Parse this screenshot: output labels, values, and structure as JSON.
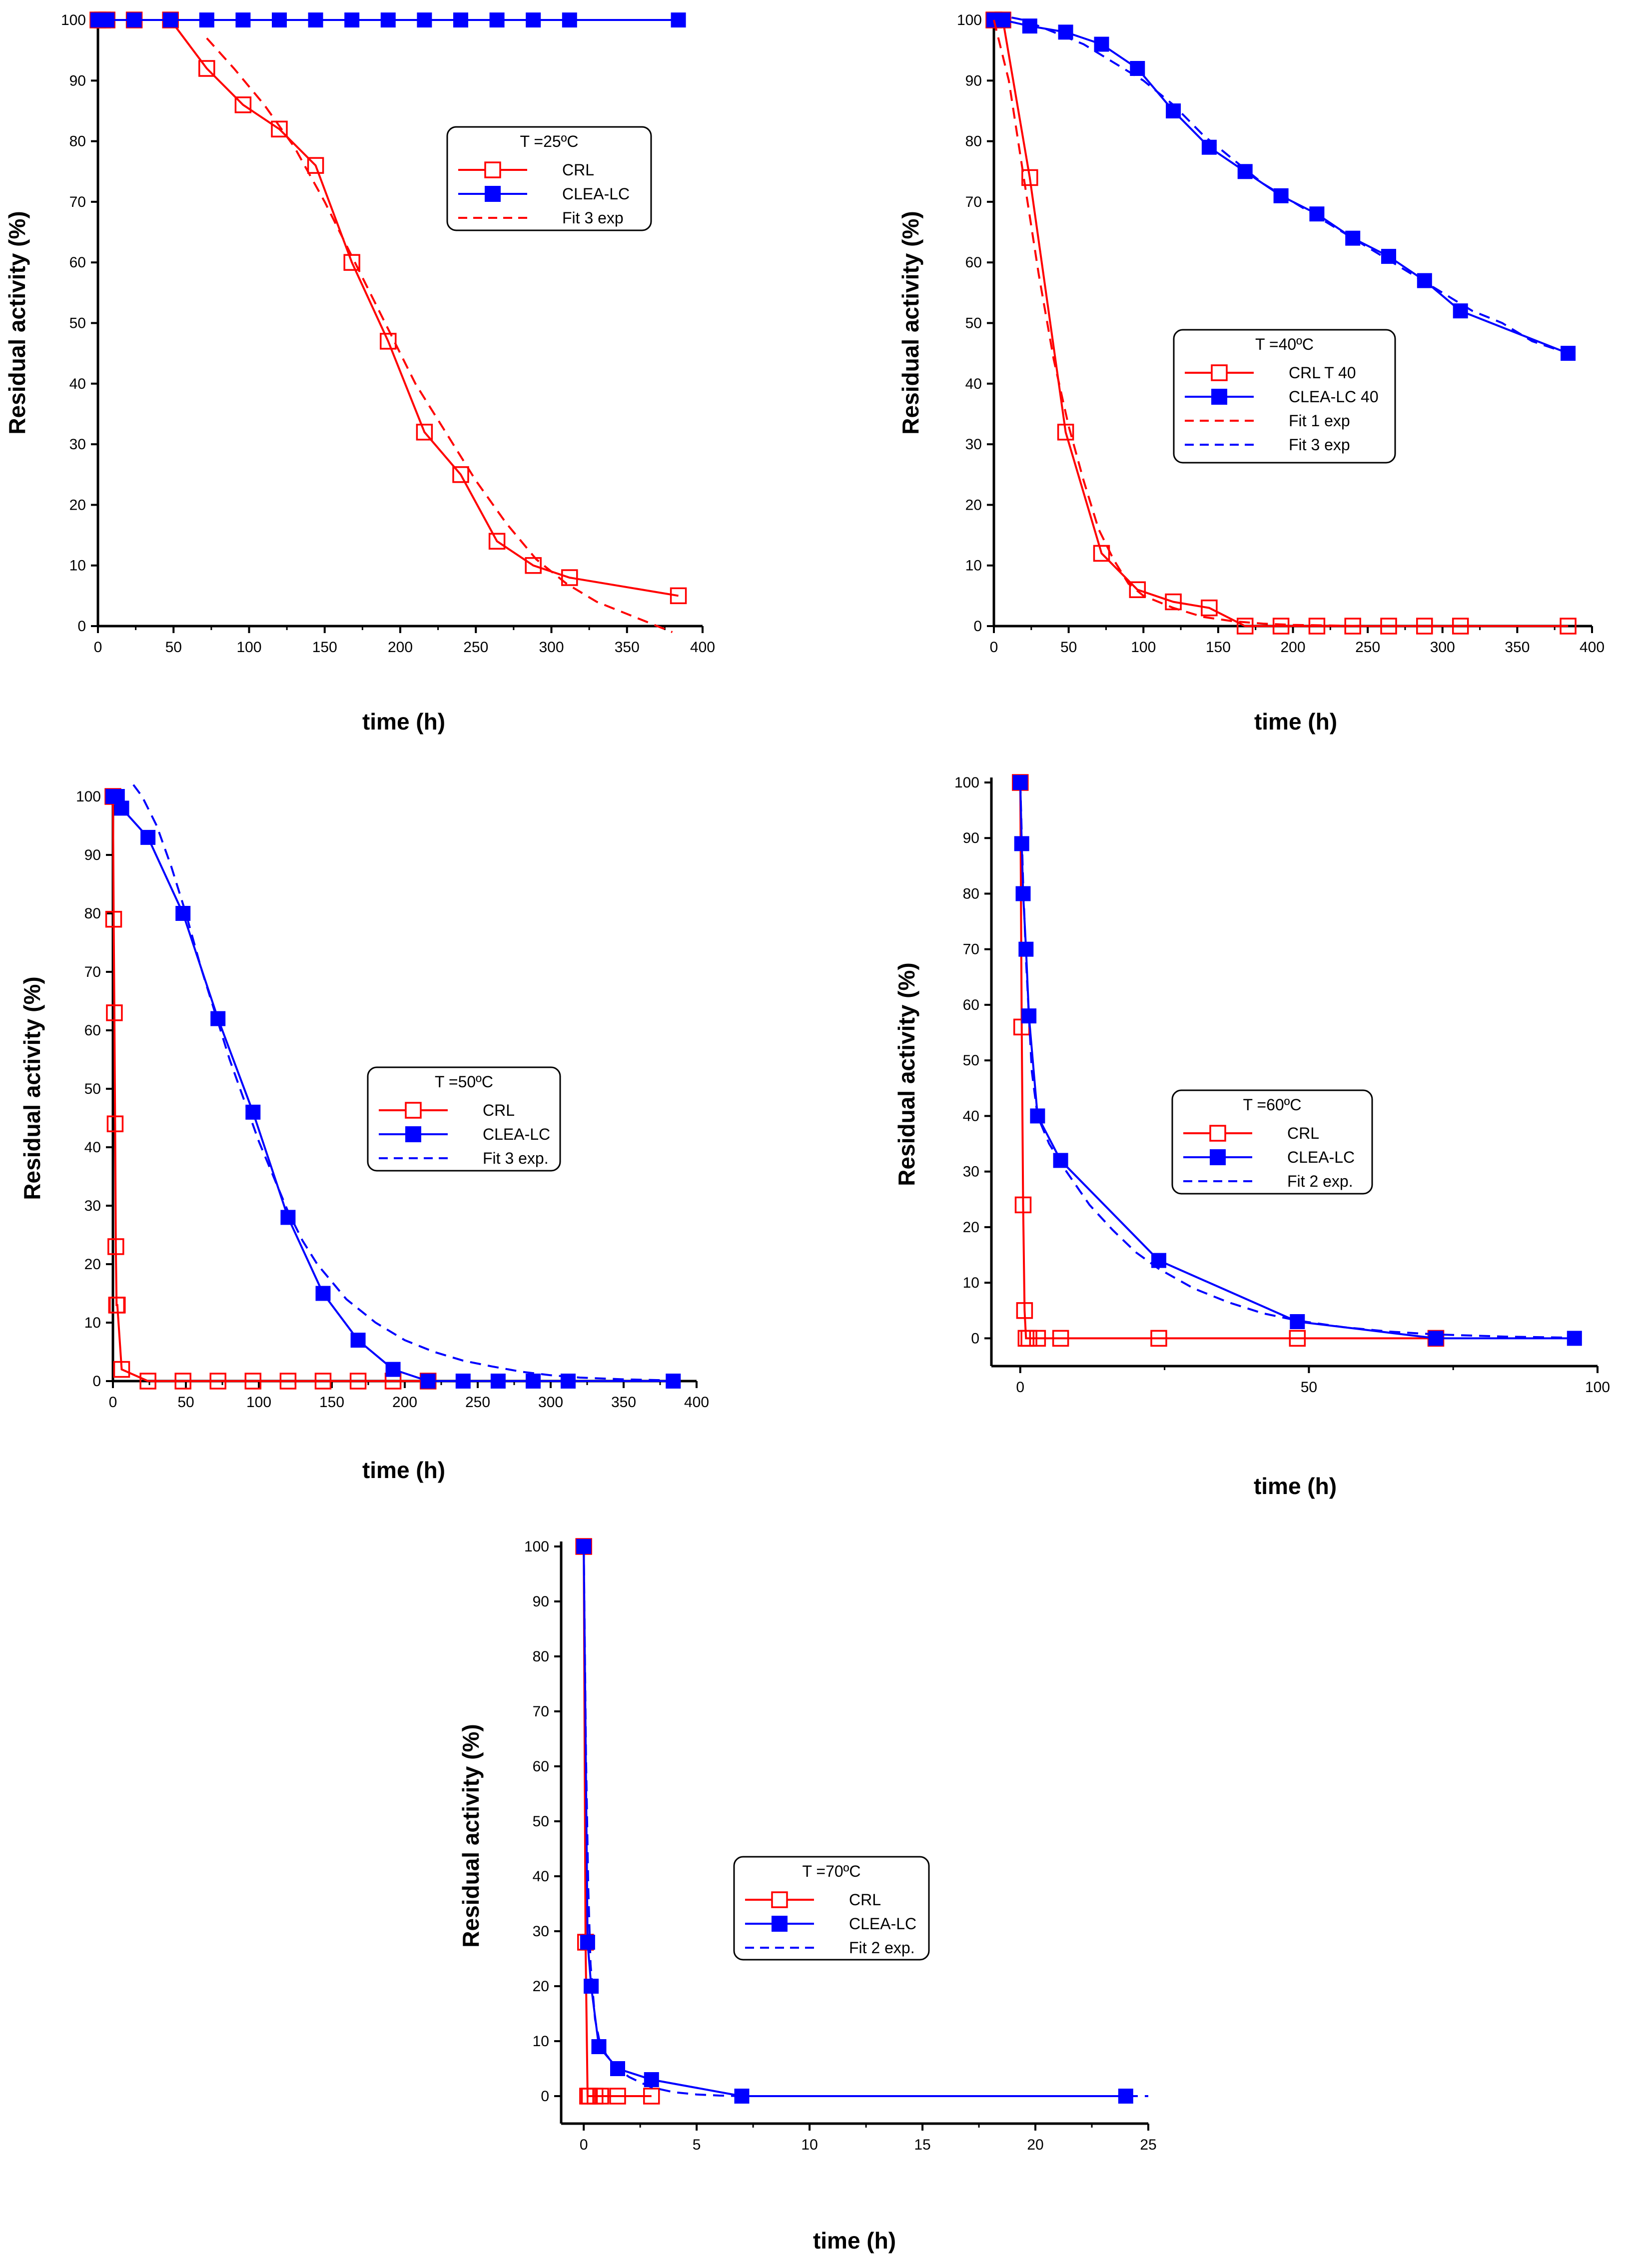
{
  "colors": {
    "crl": "#ff0000",
    "clea": "#0000ff",
    "axis": "#000000"
  },
  "chart_data": [
    {
      "type": "line",
      "title": "T =25ºC",
      "xlabel": "time (h)",
      "ylabel": "Residual activity (%)",
      "xlim": [
        0,
        400
      ],
      "ylim": [
        0,
        100
      ],
      "xticks": [
        0,
        50,
        100,
        150,
        200,
        250,
        300,
        350,
        400
      ],
      "yticks": [
        0,
        10,
        20,
        30,
        40,
        50,
        60,
        70,
        80,
        90,
        100
      ],
      "legend_title": "T =25ºC",
      "series": [
        {
          "name": "CRL",
          "style": "open-square-line",
          "color": "#ff0000",
          "x": [
            0,
            3,
            6,
            24,
            48,
            72,
            96,
            120,
            144,
            168,
            192,
            216,
            240,
            264,
            288,
            312,
            384
          ],
          "y": [
            100,
            100,
            100,
            100,
            100,
            92,
            86,
            82,
            76,
            60,
            47,
            32,
            25,
            14,
            10,
            8,
            5
          ]
        },
        {
          "name": "CLEA-LC",
          "style": "filled-square-line",
          "color": "#0000ff",
          "x": [
            0,
            3,
            6,
            24,
            48,
            72,
            96,
            120,
            144,
            168,
            192,
            216,
            240,
            264,
            288,
            312,
            384
          ],
          "y": [
            100,
            100,
            100,
            100,
            100,
            100,
            100,
            100,
            100,
            100,
            100,
            100,
            100,
            100,
            100,
            100,
            100
          ]
        },
        {
          "name": "Fit 3 exp",
          "style": "dashed",
          "color": "#ff0000",
          "x": [
            72,
            90,
            110,
            130,
            150,
            170,
            190,
            210,
            230,
            250,
            270,
            290,
            310,
            330,
            350,
            365,
            380
          ],
          "y": [
            97,
            92,
            86,
            79,
            70,
            60,
            50,
            40,
            32,
            24,
            17,
            11,
            7,
            4,
            2,
            0.5,
            -1
          ]
        }
      ]
    },
    {
      "type": "line",
      "title": "T =40ºC",
      "xlabel": "time (h)",
      "ylabel": "Residual activity (%)",
      "xlim": [
        0,
        400
      ],
      "ylim": [
        0,
        100
      ],
      "xticks": [
        0,
        50,
        100,
        150,
        200,
        250,
        300,
        350,
        400
      ],
      "yticks": [
        0,
        10,
        20,
        30,
        40,
        50,
        60,
        70,
        80,
        90,
        100
      ],
      "legend_title": "T =40ºC",
      "series": [
        {
          "name": "CRL T 40",
          "style": "open-square-line",
          "color": "#ff0000",
          "x": [
            0,
            6,
            24,
            48,
            72,
            96,
            120,
            144,
            168,
            192,
            216,
            240,
            264,
            288,
            312,
            384
          ],
          "y": [
            100,
            100,
            74,
            32,
            12,
            6,
            4,
            3,
            0,
            0,
            0,
            0,
            0,
            0,
            0,
            0
          ]
        },
        {
          "name": "CLEA-LC 40",
          "style": "filled-square-line",
          "color": "#0000ff",
          "x": [
            0,
            6,
            24,
            48,
            72,
            96,
            120,
            144,
            168,
            192,
            216,
            240,
            264,
            288,
            312,
            384
          ],
          "y": [
            100,
            100,
            99,
            98,
            96,
            92,
            85,
            79,
            75,
            71,
            68,
            64,
            61,
            57,
            52,
            45
          ]
        },
        {
          "name": "Fit 1 exp",
          "style": "dashed",
          "color": "#ff0000",
          "x": [
            0,
            10,
            20,
            30,
            40,
            50,
            60,
            70,
            80,
            90,
            100,
            120,
            140,
            160,
            180,
            200,
            250,
            300,
            384
          ],
          "y": [
            100,
            90,
            74,
            58,
            44,
            33,
            24,
            16,
            11,
            7,
            5,
            3,
            1.5,
            0.8,
            0.4,
            0.2,
            0,
            0,
            0
          ]
        },
        {
          "name": "Fit 3 exp",
          "style": "dashed",
          "color": "#0000ff",
          "x": [
            0,
            20,
            40,
            60,
            80,
            100,
            120,
            140,
            160,
            180,
            200,
            220,
            240,
            260,
            280,
            300,
            320,
            340,
            360,
            384
          ],
          "y": [
            101,
            100,
            98,
            96,
            93,
            90,
            86,
            81,
            77,
            73,
            70,
            67,
            64,
            61,
            58,
            55,
            52,
            50,
            47,
            45
          ]
        }
      ]
    },
    {
      "type": "line",
      "title": "T =50ºC",
      "xlabel": "time (h)",
      "ylabel": "Residual activity (%)",
      "xlim": [
        0,
        400
      ],
      "ylim": [
        0,
        100
      ],
      "xticks": [
        0,
        50,
        100,
        150,
        200,
        250,
        300,
        350,
        400
      ],
      "yticks": [
        0,
        10,
        20,
        30,
        40,
        50,
        60,
        70,
        80,
        90,
        100
      ],
      "legend_title": "T =50ºC",
      "series": [
        {
          "name": "CRL",
          "style": "open-square-line",
          "color": "#ff0000",
          "x": [
            0,
            0.5,
            1,
            1.5,
            2,
            2.5,
            3,
            6,
            24,
            48,
            72,
            96,
            120,
            144,
            168,
            192,
            216
          ],
          "y": [
            100,
            79,
            63,
            44,
            23,
            13,
            13,
            2,
            0,
            0,
            0,
            0,
            0,
            0,
            0,
            0,
            0
          ]
        },
        {
          "name": "CLEA-LC",
          "style": "filled-square-line",
          "color": "#0000ff",
          "x": [
            0,
            3,
            6,
            24,
            48,
            72,
            96,
            120,
            144,
            168,
            192,
            216,
            240,
            264,
            288,
            312,
            384
          ],
          "y": [
            100,
            100,
            98,
            93,
            80,
            62,
            46,
            28,
            15,
            7,
            2,
            0,
            0,
            0,
            0,
            0,
            0
          ]
        },
        {
          "name": "Fit 3 exp.",
          "style": "dashed",
          "color": "#0000ff",
          "x": [
            14,
            20,
            30,
            40,
            50,
            60,
            70,
            80,
            90,
            100,
            110,
            120,
            130,
            140,
            150,
            160,
            170,
            180,
            200,
            220,
            240,
            260,
            280,
            300,
            320,
            350,
            384
          ],
          "y": [
            102,
            100,
            95,
            88,
            80,
            71,
            63,
            55,
            48,
            41,
            35,
            29,
            24,
            20,
            17,
            14,
            12,
            10,
            7,
            5,
            3.5,
            2.5,
            1.6,
            1,
            0.6,
            0.3,
            0.1
          ]
        }
      ]
    },
    {
      "type": "line",
      "title": "T =60ºC",
      "xlabel": "time (h)",
      "ylabel": "Residual activity (%)",
      "xlim": [
        -5,
        100
      ],
      "ylim": [
        -5,
        100
      ],
      "xticks": [
        0,
        50,
        100
      ],
      "yticks": [
        0,
        10,
        20,
        30,
        40,
        50,
        60,
        70,
        80,
        90,
        100
      ],
      "legend_title": "T =60ºC",
      "series": [
        {
          "name": "CRL",
          "style": "open-square-line",
          "color": "#ff0000",
          "x": [
            0,
            0.25,
            0.5,
            0.75,
            1,
            1.5,
            3,
            7,
            24,
            48,
            72
          ],
          "y": [
            100,
            56,
            24,
            5,
            0,
            0,
            0,
            0,
            0,
            0,
            0
          ]
        },
        {
          "name": "CLEA-LC",
          "style": "filled-square-line",
          "color": "#0000ff",
          "x": [
            0,
            0.25,
            0.5,
            1,
            1.5,
            3,
            7,
            24,
            48,
            72,
            96
          ],
          "y": [
            100,
            89,
            80,
            70,
            58,
            40,
            32,
            14,
            3,
            0,
            0
          ]
        },
        {
          "name": "Fit 2 exp.",
          "style": "dashed",
          "color": "#0000ff",
          "x": [
            0,
            0.5,
            1,
            2,
            3,
            5,
            8,
            12,
            16,
            20,
            24,
            30,
            36,
            42,
            48,
            56,
            64,
            72,
            84,
            96
          ],
          "y": [
            100,
            82,
            68,
            48,
            40,
            35,
            30,
            24,
            19.5,
            15.5,
            12.5,
            9,
            6.5,
            4.5,
            3.2,
            2,
            1.2,
            0.7,
            0.3,
            0.1
          ]
        }
      ]
    },
    {
      "type": "line",
      "title": "T =70ºC",
      "xlabel": "time (h)",
      "ylabel": "Residual activity (%)",
      "xlim": [
        -1,
        25
      ],
      "ylim": [
        -5,
        100
      ],
      "xticks": [
        0,
        5,
        10,
        15,
        20,
        25
      ],
      "yticks": [
        0,
        10,
        20,
        30,
        40,
        50,
        60,
        70,
        80,
        90,
        100
      ],
      "legend_title": "T =70ºC",
      "series": [
        {
          "name": "CRL",
          "style": "open-square-line",
          "color": "#ff0000",
          "x": [
            0,
            0.08,
            0.17,
            0.25,
            0.5,
            0.75,
            1.5,
            3
          ],
          "y": [
            100,
            28,
            0,
            0,
            0,
            0,
            0,
            0
          ]
        },
        {
          "name": "CLEA-LC",
          "style": "filled-square-line",
          "color": "#0000ff",
          "x": [
            0,
            0.17,
            0.33,
            0.67,
            1.5,
            3,
            7,
            24
          ],
          "y": [
            100,
            28,
            20,
            9,
            5,
            3,
            0,
            0
          ]
        },
        {
          "name": "Fit 2 exp.",
          "style": "dashed",
          "color": "#0000ff",
          "x": [
            0,
            0.1,
            0.2,
            0.3,
            0.5,
            0.7,
            1,
            1.5,
            2,
            2.5,
            3,
            4,
            5,
            6,
            7,
            10,
            15,
            20,
            25
          ],
          "y": [
            100,
            62,
            38,
            24,
            14,
            10,
            7.5,
            5,
            3.5,
            2.5,
            1.6,
            0.7,
            0.3,
            0.1,
            0,
            0,
            0,
            0,
            0
          ]
        }
      ]
    }
  ]
}
